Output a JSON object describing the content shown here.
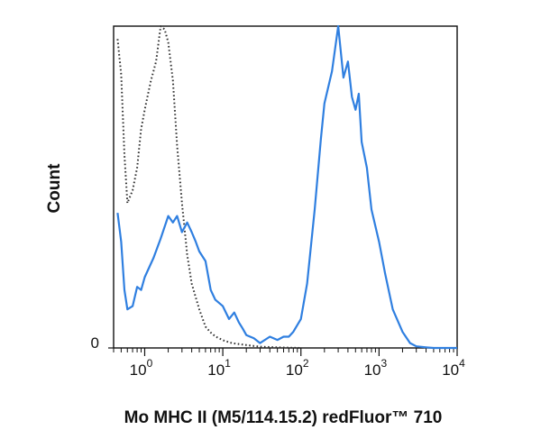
{
  "chart_data": {
    "type": "line",
    "chart_kind": "flow-cytometry histogram",
    "title": "",
    "xlabel": "Mo MHC II (M5/114.15.2) redFluor™ 710",
    "ylabel": "Count",
    "x_scale": "log",
    "xlim": [
      0.4,
      10000
    ],
    "ylim": [
      0,
      100
    ],
    "y_ticks": [
      {
        "value": 0,
        "label": "0"
      }
    ],
    "x_ticks": [
      {
        "value": 1,
        "base": "10",
        "exp": "0"
      },
      {
        "value": 10,
        "base": "10",
        "exp": "1"
      },
      {
        "value": 100,
        "base": "10",
        "exp": "2"
      },
      {
        "value": 1000,
        "base": "10",
        "exp": "3"
      },
      {
        "value": 10000,
        "base": "10",
        "exp": "4"
      }
    ],
    "grid": false,
    "legend": "none",
    "series": [
      {
        "style": "dotted",
        "color": "#333333",
        "x": [
          0.45,
          0.5,
          0.55,
          0.6,
          0.7,
          0.8,
          0.9,
          1.0,
          1.2,
          1.4,
          1.6,
          1.8,
          2.0,
          2.3,
          2.6,
          3.0,
          3.5,
          4.0,
          5.0,
          6.0,
          7.0,
          8.0,
          10,
          13,
          20,
          30,
          50,
          100
        ],
        "values": [
          96,
          85,
          60,
          45,
          49,
          56,
          68,
          74,
          83,
          89,
          100,
          99,
          95,
          83,
          63,
          45,
          29,
          20,
          12,
          6.6,
          4.8,
          3.6,
          2.4,
          1.5,
          0.9,
          0.4,
          0.2,
          0
        ]
      },
      {
        "style": "solid",
        "color": "#2f7fe0",
        "x": [
          0.45,
          0.5,
          0.55,
          0.6,
          0.7,
          0.8,
          0.9,
          1.0,
          1.3,
          1.6,
          2.0,
          2.3,
          2.6,
          3.0,
          3.5,
          4.0,
          4.5,
          5.0,
          6.0,
          7.0,
          8.0,
          10,
          12,
          14,
          16,
          18,
          20,
          25,
          30,
          40,
          50,
          60,
          70,
          80,
          100,
          120,
          150,
          180,
          200,
          250,
          300,
          350,
          400,
          450,
          500,
          550,
          600,
          700,
          800,
          1000,
          1200,
          1500,
          2000,
          2500,
          3000,
          4000,
          5000,
          10000
        ],
        "values": [
          42,
          33,
          18,
          12,
          13,
          19,
          18,
          22,
          28,
          34,
          41,
          39,
          41,
          36,
          39,
          36,
          33,
          30,
          27,
          18,
          15,
          13,
          9,
          11,
          8,
          6,
          4,
          3,
          1.5,
          3.5,
          2.5,
          3.5,
          3.5,
          5,
          9,
          20,
          43,
          65,
          76,
          86,
          100,
          84,
          89,
          78,
          74,
          79,
          64,
          56,
          43,
          33,
          23,
          12,
          5,
          1.5,
          0.5,
          0.2,
          0,
          0
        ]
      }
    ]
  }
}
